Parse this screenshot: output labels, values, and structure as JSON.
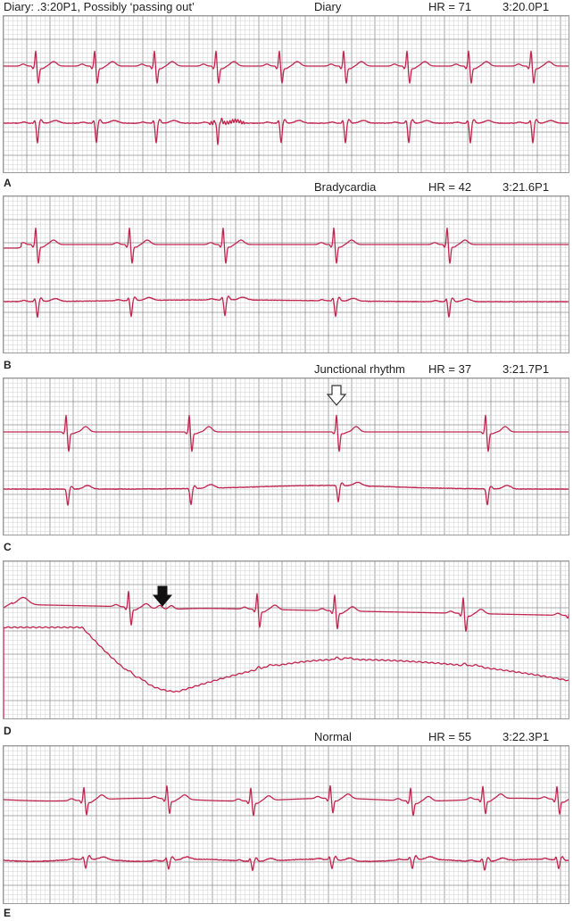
{
  "colors": {
    "trace": "#c0264f",
    "grid_minor": "#cfcfcf",
    "grid_major": "#8f8f8f",
    "background": "#ffffff"
  },
  "panels": [
    {
      "letter": "A",
      "diary_note": "Diary: .3:20P1, Possibly ‘passing out’",
      "event": "Diary",
      "hr": "HR = 71",
      "time": "3:20.0P1"
    },
    {
      "letter": "B",
      "event": "Bradycardia",
      "hr": "HR = 42",
      "time": "3:21.6P1"
    },
    {
      "letter": "C",
      "event": "Junctional rhythm",
      "hr": "HR = 37",
      "time": "3:21.7P1",
      "marker": "open-arrow"
    },
    {
      "letter": "D",
      "marker": "filled-arrow"
    },
    {
      "letter": "E",
      "event": "Normal",
      "hr": "HR = 55",
      "time": "3:22.3P1"
    }
  ]
}
